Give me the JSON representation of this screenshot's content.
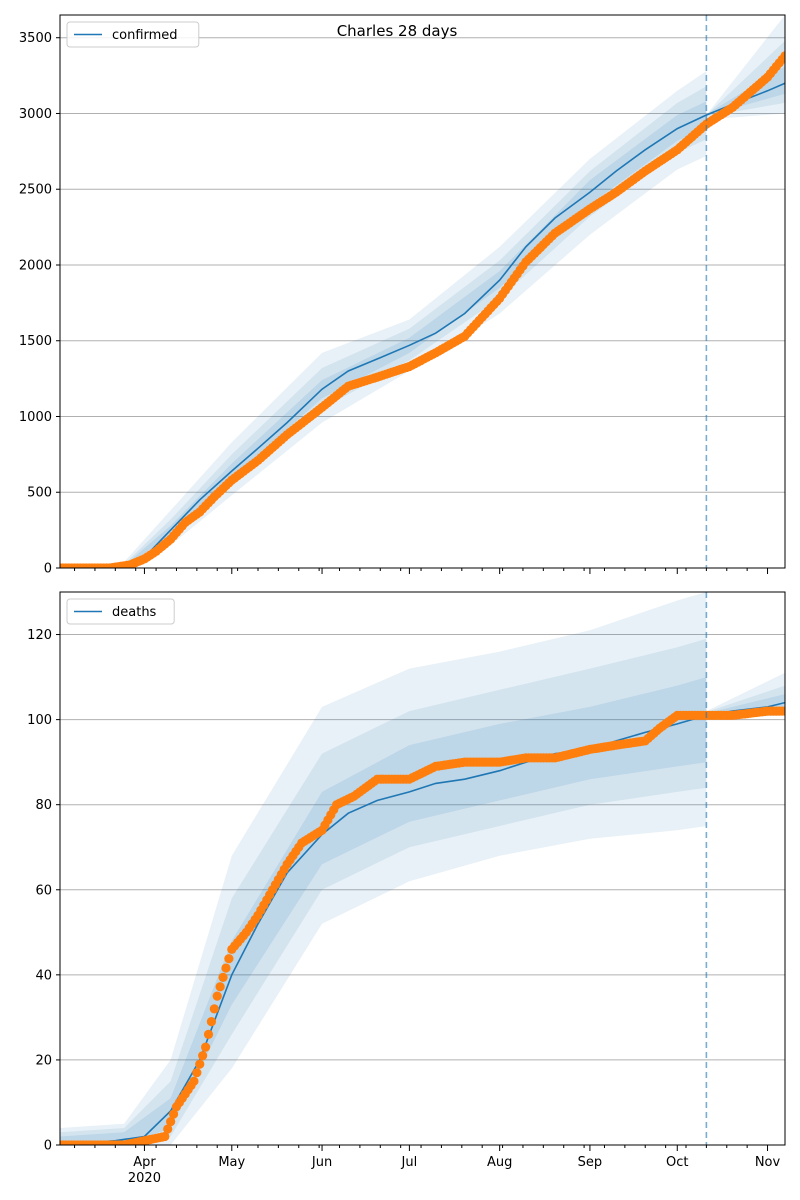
{
  "figure": {
    "title": "Charles 28 days"
  },
  "colors": {
    "model": "#1f77b4",
    "observed": "#ff7f0e",
    "grid": "#b0b0b0",
    "band": "#1f77b4"
  },
  "chart_data": [
    {
      "type": "line",
      "title": "Charles 28 days",
      "legend": {
        "label": "confirmed",
        "placement": "top-left"
      },
      "grid": "y",
      "xlim": [
        "2020-03-03",
        "2020-11-07"
      ],
      "ylim": [
        0,
        3650
      ],
      "yticks": [
        0,
        500,
        1000,
        1500,
        2000,
        2500,
        3000,
        3500
      ],
      "forecast_start": "2020-10-11",
      "series": [
        {
          "name": "confirmed",
          "role": "model",
          "x": [
            "2020-03-03",
            "2020-03-20",
            "2020-04-01",
            "2020-04-10",
            "2020-04-20",
            "2020-05-01",
            "2020-05-10",
            "2020-05-20",
            "2020-06-01",
            "2020-06-10",
            "2020-06-20",
            "2020-07-01",
            "2020-07-10",
            "2020-07-20",
            "2020-08-01",
            "2020-08-10",
            "2020-08-20",
            "2020-09-01",
            "2020-09-10",
            "2020-09-20",
            "2020-10-01",
            "2020-10-11",
            "2020-10-20",
            "2020-11-01",
            "2020-11-07"
          ],
          "y": [
            0,
            5,
            70,
            250,
            450,
            640,
            790,
            960,
            1180,
            1300,
            1380,
            1470,
            1550,
            1680,
            1900,
            2120,
            2310,
            2480,
            2620,
            2760,
            2900,
            2990,
            3060,
            3150,
            3200
          ]
        },
        {
          "name": "observed",
          "role": "observed",
          "x": [
            "2020-03-03",
            "2020-03-20",
            "2020-03-27",
            "2020-04-01",
            "2020-04-05",
            "2020-04-10",
            "2020-04-15",
            "2020-04-20",
            "2020-04-25",
            "2020-05-01",
            "2020-05-10",
            "2020-05-20",
            "2020-06-01",
            "2020-06-10",
            "2020-06-20",
            "2020-07-01",
            "2020-07-10",
            "2020-07-20",
            "2020-08-01",
            "2020-08-10",
            "2020-08-20",
            "2020-09-01",
            "2020-09-10",
            "2020-09-20",
            "2020-10-01",
            "2020-10-11",
            "2020-10-20",
            "2020-11-01",
            "2020-11-07"
          ],
          "y": [
            0,
            0,
            20,
            60,
            110,
            190,
            300,
            370,
            470,
            580,
            710,
            880,
            1060,
            1200,
            1260,
            1330,
            1420,
            1530,
            1780,
            2020,
            2210,
            2370,
            2480,
            2620,
            2760,
            2930,
            3040,
            3240,
            3380
          ]
        }
      ],
      "bands": [
        {
          "level": "outer",
          "x": [
            "2020-03-03",
            "2020-03-25",
            "2020-04-10",
            "2020-05-01",
            "2020-06-01",
            "2020-07-01",
            "2020-08-01",
            "2020-09-01",
            "2020-10-01",
            "2020-10-11",
            "2020-10-11",
            "2020-11-07"
          ],
          "lower": [
            0,
            0,
            150,
            480,
            960,
            1300,
            1680,
            2200,
            2630,
            2720,
            2960,
            3000
          ],
          "upper": [
            0,
            40,
            380,
            830,
            1420,
            1640,
            2120,
            2700,
            3150,
            3280,
            2990,
            3650
          ]
        },
        {
          "level": "middle",
          "x": [
            "2020-03-03",
            "2020-03-25",
            "2020-04-10",
            "2020-05-01",
            "2020-06-01",
            "2020-07-01",
            "2020-08-01",
            "2020-09-01",
            "2020-10-01",
            "2020-10-11",
            "2020-10-11",
            "2020-11-07"
          ],
          "lower": [
            0,
            0,
            190,
            540,
            1050,
            1370,
            1780,
            2320,
            2740,
            2830,
            2980,
            3070
          ],
          "upper": [
            0,
            25,
            320,
            750,
            1320,
            1580,
            2030,
            2620,
            3070,
            3180,
            2990,
            3480
          ]
        },
        {
          "level": "inner",
          "x": [
            "2020-03-03",
            "2020-03-25",
            "2020-04-10",
            "2020-05-01",
            "2020-06-01",
            "2020-07-01",
            "2020-08-01",
            "2020-09-01",
            "2020-10-01",
            "2020-10-11",
            "2020-10-11",
            "2020-11-07"
          ],
          "lower": [
            0,
            0,
            220,
            590,
            1120,
            1420,
            1850,
            2400,
            2820,
            2910,
            2985,
            3130
          ],
          "upper": [
            0,
            15,
            280,
            690,
            1240,
            1520,
            1960,
            2560,
            2990,
            3080,
            2995,
            3310
          ]
        }
      ]
    },
    {
      "type": "line",
      "legend": {
        "label": "deaths",
        "placement": "top-left"
      },
      "grid": "y",
      "xlim": [
        "2020-03-03",
        "2020-11-07"
      ],
      "ylim": [
        0,
        130
      ],
      "yticks": [
        0,
        20,
        40,
        60,
        80,
        100,
        120
      ],
      "xticks": [
        {
          "date": "2020-04-01",
          "label": "Apr",
          "sublabel": "2020"
        },
        {
          "date": "2020-05-01",
          "label": "May",
          "sublabel": ""
        },
        {
          "date": "2020-06-01",
          "label": "Jun",
          "sublabel": ""
        },
        {
          "date": "2020-07-01",
          "label": "Jul",
          "sublabel": ""
        },
        {
          "date": "2020-08-01",
          "label": "Aug",
          "sublabel": ""
        },
        {
          "date": "2020-09-01",
          "label": "Sep",
          "sublabel": ""
        },
        {
          "date": "2020-10-01",
          "label": "Oct",
          "sublabel": ""
        },
        {
          "date": "2020-11-01",
          "label": "Nov",
          "sublabel": ""
        }
      ],
      "forecast_start": "2020-10-11",
      "series": [
        {
          "name": "deaths",
          "role": "model",
          "x": [
            "2020-03-03",
            "2020-03-22",
            "2020-04-01",
            "2020-04-10",
            "2020-04-20",
            "2020-05-01",
            "2020-05-10",
            "2020-05-20",
            "2020-06-01",
            "2020-06-10",
            "2020-06-20",
            "2020-07-01",
            "2020-07-10",
            "2020-07-20",
            "2020-08-01",
            "2020-08-10",
            "2020-08-20",
            "2020-09-01",
            "2020-09-10",
            "2020-09-20",
            "2020-10-01",
            "2020-10-11",
            "2020-10-20",
            "2020-11-01",
            "2020-11-07"
          ],
          "y": [
            0,
            1,
            2,
            8,
            20,
            40,
            52,
            64,
            73,
            78,
            81,
            83,
            85,
            86,
            88,
            90,
            92,
            93,
            95,
            97,
            99,
            101,
            102,
            103,
            104
          ]
        },
        {
          "name": "observed",
          "role": "observed",
          "x": [
            "2020-03-03",
            "2020-03-25",
            "2020-04-01",
            "2020-04-08",
            "2020-04-12",
            "2020-04-18",
            "2020-04-22",
            "2020-04-26",
            "2020-05-01",
            "2020-05-06",
            "2020-05-10",
            "2020-05-15",
            "2020-05-20",
            "2020-05-25",
            "2020-06-01",
            "2020-06-06",
            "2020-06-12",
            "2020-06-20",
            "2020-07-01",
            "2020-07-10",
            "2020-07-20",
            "2020-08-01",
            "2020-08-10",
            "2020-08-20",
            "2020-09-01",
            "2020-09-10",
            "2020-09-20",
            "2020-09-25",
            "2020-10-01",
            "2020-10-11",
            "2020-10-20",
            "2020-11-01",
            "2020-11-07"
          ],
          "y": [
            0,
            0,
            1,
            2,
            9,
            15,
            23,
            35,
            46,
            50,
            54,
            60,
            66,
            71,
            74,
            80,
            82,
            86,
            86,
            89,
            90,
            90,
            91,
            91,
            93,
            94,
            95,
            98,
            101,
            101,
            101,
            102,
            102
          ]
        }
      ],
      "bands": [
        {
          "level": "outer",
          "x": [
            "2020-03-03",
            "2020-03-25",
            "2020-04-10",
            "2020-05-01",
            "2020-06-01",
            "2020-07-01",
            "2020-08-01",
            "2020-09-01",
            "2020-10-01",
            "2020-10-11",
            "2020-10-11",
            "2020-11-07"
          ],
          "lower": [
            0,
            0,
            0,
            18,
            52,
            62,
            68,
            72,
            74,
            75,
            100,
            101
          ],
          "upper": [
            4,
            5,
            20,
            68,
            103,
            112,
            116,
            121,
            128,
            130,
            102,
            111
          ]
        },
        {
          "level": "middle",
          "x": [
            "2020-03-03",
            "2020-03-25",
            "2020-04-10",
            "2020-05-01",
            "2020-06-01",
            "2020-07-01",
            "2020-08-01",
            "2020-09-01",
            "2020-10-01",
            "2020-10-11",
            "2020-10-11",
            "2020-11-07"
          ],
          "lower": [
            0,
            0,
            2,
            26,
            60,
            70,
            75,
            80,
            83,
            84,
            100.5,
            102
          ],
          "upper": [
            3,
            4,
            15,
            58,
            92,
            102,
            107,
            112,
            117,
            119,
            101.8,
            108
          ]
        },
        {
          "level": "inner",
          "x": [
            "2020-03-03",
            "2020-03-25",
            "2020-04-10",
            "2020-05-01",
            "2020-06-01",
            "2020-07-01",
            "2020-08-01",
            "2020-09-01",
            "2020-10-01",
            "2020-10-11",
            "2020-10-11",
            "2020-11-07"
          ],
          "lower": [
            0,
            0,
            4,
            33,
            66,
            76,
            81,
            86,
            89,
            90,
            101,
            103
          ],
          "upper": [
            2,
            3,
            11,
            48,
            83,
            94,
            99,
            103,
            108,
            110,
            101.5,
            106
          ]
        }
      ]
    }
  ]
}
